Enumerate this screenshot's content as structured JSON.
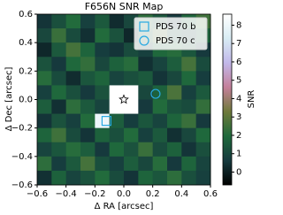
{
  "chart_data": {
    "type": "heatmap",
    "title": "F656N SNR Map",
    "xlabel": "Δ RA [arcsec]",
    "ylabel": "Δ Dec [arcsec]",
    "colorbar_label": "SNR",
    "xlim": [
      -0.6,
      0.6
    ],
    "ylim": [
      -0.6,
      0.6
    ],
    "xticks": [
      {
        "value": -0.6,
        "label": "−0.6"
      },
      {
        "value": -0.4,
        "label": "−0.4"
      },
      {
        "value": -0.2,
        "label": "−0.2"
      },
      {
        "value": 0,
        "label": "0.0"
      },
      {
        "value": 0.2,
        "label": "0.2"
      },
      {
        "value": 0.4,
        "label": "0.4"
      },
      {
        "value": 0.6,
        "label": "0.6"
      }
    ],
    "yticks": [
      {
        "value": -0.6,
        "label": "−0.6"
      },
      {
        "value": -0.4,
        "label": "−0.4"
      },
      {
        "value": -0.2,
        "label": "−0.2"
      },
      {
        "value": 0,
        "label": "0.0"
      },
      {
        "value": 0.2,
        "label": "0.2"
      },
      {
        "value": 0.4,
        "label": "0.4"
      },
      {
        "value": 0.6,
        "label": "0.6"
      }
    ],
    "clim": [
      -0.7,
      8.6
    ],
    "cticks": [
      0,
      1,
      2,
      3,
      4,
      5,
      6,
      7,
      8
    ],
    "colormap": [
      "#000000",
      "#163a3e",
      "#1f6a3c",
      "#6e7a3a",
      "#c4809a",
      "#c2b8ea",
      "#d8ecf4",
      "#ffffff"
    ],
    "z": [
      [
        0.5,
        1.2,
        2.0,
        0.8,
        1.5,
        0.3,
        1.0,
        2.2,
        1.4,
        0.6,
        1.8,
        2.5
      ],
      [
        1.0,
        2.4,
        1.1,
        0.4,
        2.0,
        1.3,
        0.2,
        1.6,
        2.8,
        1.2,
        0.9,
        1.7
      ],
      [
        0.2,
        1.5,
        2.6,
        1.8,
        0.7,
        0.5,
        1.1,
        0.8,
        1.9,
        2.1,
        1.4,
        0.6
      ],
      [
        1.3,
        0.6,
        1.9,
        2.3,
        1.0,
        1.7,
        2.1,
        0.4,
        0.9,
        1.6,
        2.6,
        1.1
      ],
      [
        2.1,
        1.1,
        0.3,
        1.4,
        1.8,
        0.9,
        1.2,
        1.5,
        0.5,
        1.0,
        1.9,
        0.7
      ],
      [
        0.8,
        1.9,
        1.2,
        0.6,
        1.3,
        null,
        null,
        1.0,
        1.7,
        2.7,
        0.8,
        1.5
      ],
      [
        1.6,
        0.4,
        2.2,
        1.5,
        0.9,
        null,
        null,
        0.6,
        2.0,
        1.3,
        1.1,
        2.3
      ],
      [
        0.5,
        1.3,
        0.8,
        2.0,
        8.0,
        1.6,
        0.7,
        1.4,
        0.9,
        1.8,
        2.4,
        0.6
      ],
      [
        1.8,
        2.5,
        1.1,
        0.5,
        1.7,
        1.2,
        2.0,
        0.8,
        1.5,
        0.4,
        1.0,
        1.9
      ],
      [
        0.9,
        1.4,
        2.1,
        1.6,
        0.6,
        1.9,
        1.3,
        2.4,
        1.1,
        1.7,
        0.5,
        1.2
      ],
      [
        2.2,
        0.7,
        1.5,
        2.6,
        1.2,
        0.8,
        1.6,
        1.0,
        2.1,
        0.6,
        1.8,
        0.9
      ],
      [
        0.4,
        1.7,
        0.9,
        1.3,
        2.0,
        1.1,
        0.5,
        1.8,
        1.4,
        2.2,
        1.2,
        0.8
      ]
    ],
    "markers": [
      {
        "name": "PDS 70 b",
        "shape": "square",
        "color": "#27a9e1",
        "x": -0.12,
        "y": -0.15
      },
      {
        "name": "PDS 70 c",
        "shape": "circle",
        "color": "#27a9e1",
        "x": 0.22,
        "y": 0.04
      }
    ],
    "star": {
      "x": 0,
      "y": 0
    },
    "legend": "upper right"
  }
}
